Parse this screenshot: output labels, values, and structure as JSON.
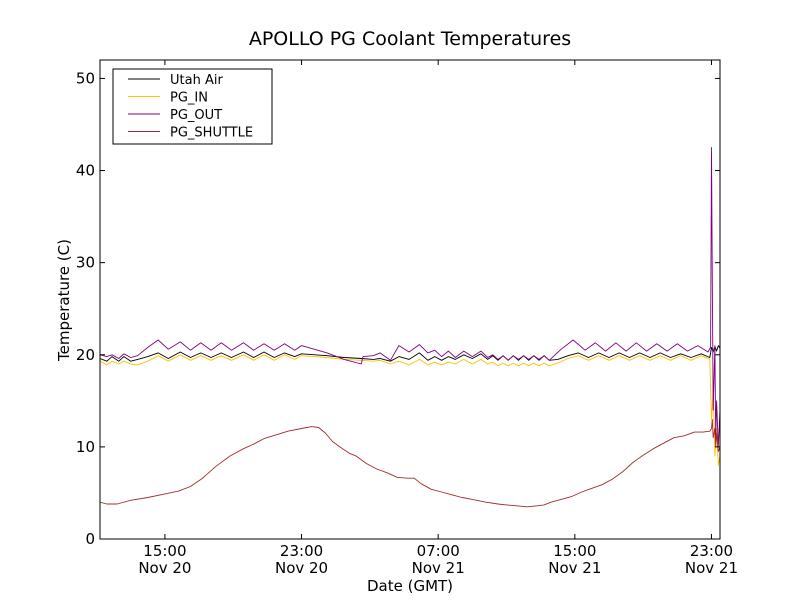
{
  "chart_data": {
    "type": "line",
    "title": "APOLLO PG Coolant Temperatures",
    "xlabel": "Date (GMT)",
    "ylabel": "Temperature (C)",
    "xlim": [
      11.2,
      47.5
    ],
    "ylim": [
      0,
      52
    ],
    "yticks": [
      0,
      10,
      20,
      30,
      40,
      50
    ],
    "xticks": [
      {
        "hour": 15,
        "time": "15:00",
        "date": "Nov 20"
      },
      {
        "hour": 23,
        "time": "23:00",
        "date": "Nov 20"
      },
      {
        "hour": 31,
        "time": "07:00",
        "date": "Nov 21"
      },
      {
        "hour": 39,
        "time": "15:00",
        "date": "Nov 21"
      },
      {
        "hour": 47,
        "time": "23:00",
        "date": "Nov 21"
      }
    ],
    "legend_position": "top-left",
    "series": [
      {
        "name": "Utah Air",
        "color": "#000000",
        "points": [
          [
            11.2,
            19.6
          ],
          [
            11.6,
            19.3
          ],
          [
            11.9,
            19.8
          ],
          [
            12.3,
            19.3
          ],
          [
            12.6,
            19.8
          ],
          [
            13,
            19.3
          ],
          [
            13.4,
            19.5
          ],
          [
            14,
            19.8
          ],
          [
            14.6,
            20.2
          ],
          [
            15.2,
            19.6
          ],
          [
            15.9,
            20.3
          ],
          [
            16.5,
            19.7
          ],
          [
            17.1,
            20.2
          ],
          [
            17.7,
            19.7
          ],
          [
            18.3,
            20.2
          ],
          [
            18.9,
            19.7
          ],
          [
            19.6,
            20.3
          ],
          [
            20.2,
            19.7
          ],
          [
            20.8,
            20.3
          ],
          [
            21.4,
            19.7
          ],
          [
            22,
            20.2
          ],
          [
            22.6,
            19.8
          ],
          [
            23,
            20.1
          ],
          [
            24.5,
            19.9
          ],
          [
            25.5,
            19.7
          ],
          [
            26.5,
            19.6
          ],
          [
            27.2,
            19.5
          ],
          [
            27.6,
            19.6
          ],
          [
            28.2,
            19.3
          ],
          [
            28.7,
            19.8
          ],
          [
            29.3,
            19.5
          ],
          [
            29.9,
            20.2
          ],
          [
            30.4,
            19.4
          ],
          [
            30.8,
            19.8
          ],
          [
            31.2,
            19.4
          ],
          [
            31.6,
            19.8
          ],
          [
            32,
            19.5
          ],
          [
            32.5,
            20
          ],
          [
            33,
            19.6
          ],
          [
            33.5,
            20.1
          ],
          [
            33.9,
            19.5
          ],
          [
            34.2,
            19.9
          ],
          [
            34.5,
            19.4
          ],
          [
            34.8,
            19.9
          ],
          [
            35.1,
            19.4
          ],
          [
            35.4,
            19.9
          ],
          [
            35.7,
            19.4
          ],
          [
            36,
            19.9
          ],
          [
            36.3,
            19.4
          ],
          [
            36.6,
            19.9
          ],
          [
            36.9,
            19.4
          ],
          [
            37.2,
            19.9
          ],
          [
            37.5,
            19.4
          ],
          [
            38,
            19.5
          ],
          [
            38.6,
            19.9
          ],
          [
            39.2,
            20.2
          ],
          [
            39.8,
            19.7
          ],
          [
            40.4,
            20.2
          ],
          [
            41,
            19.7
          ],
          [
            41.6,
            20.2
          ],
          [
            42.2,
            19.7
          ],
          [
            42.8,
            20.2
          ],
          [
            43.4,
            19.7
          ],
          [
            44,
            20.2
          ],
          [
            44.6,
            19.7
          ],
          [
            45.2,
            20.1
          ],
          [
            45.8,
            19.7
          ],
          [
            46.4,
            20.1
          ],
          [
            46.9,
            19.7
          ],
          [
            47,
            20.8
          ],
          [
            47.1,
            20.3
          ],
          [
            47.2,
            20.9
          ],
          [
            47.3,
            20.4
          ],
          [
            47.4,
            21
          ],
          [
            47.5,
            20.7
          ]
        ]
      },
      {
        "name": "PG_IN",
        "color": "#ffc000",
        "points": [
          [
            11.2,
            19.3
          ],
          [
            11.6,
            18.9
          ],
          [
            11.9,
            19.3
          ],
          [
            12.3,
            19
          ],
          [
            12.6,
            19.3
          ],
          [
            13,
            19
          ],
          [
            13.4,
            18.9
          ],
          [
            14,
            19.3
          ],
          [
            14.6,
            19.9
          ],
          [
            15.2,
            19.3
          ],
          [
            15.9,
            20
          ],
          [
            16.5,
            19.4
          ],
          [
            17.1,
            19.9
          ],
          [
            17.7,
            19.4
          ],
          [
            18.3,
            19.9
          ],
          [
            18.9,
            19.4
          ],
          [
            19.6,
            20
          ],
          [
            20.2,
            19.4
          ],
          [
            20.8,
            20
          ],
          [
            21.4,
            19.4
          ],
          [
            22,
            20
          ],
          [
            22.6,
            19.5
          ],
          [
            23,
            19.9
          ],
          [
            24.5,
            19.7
          ],
          [
            25.5,
            19.5
          ],
          [
            26.5,
            19.4
          ],
          [
            27.2,
            19.3
          ],
          [
            27.6,
            19.4
          ],
          [
            28.2,
            19
          ],
          [
            28.7,
            19.3
          ],
          [
            29.3,
            18.9
          ],
          [
            29.9,
            19.5
          ],
          [
            30.4,
            18.9
          ],
          [
            30.8,
            19.2
          ],
          [
            31.2,
            18.9
          ],
          [
            31.6,
            19.2
          ],
          [
            32,
            19
          ],
          [
            32.5,
            19.5
          ],
          [
            33,
            19
          ],
          [
            33.5,
            19.5
          ],
          [
            33.9,
            19
          ],
          [
            34.2,
            19.2
          ],
          [
            34.5,
            18.8
          ],
          [
            34.8,
            19.1
          ],
          [
            35.1,
            18.8
          ],
          [
            35.4,
            19.1
          ],
          [
            35.7,
            18.8
          ],
          [
            36,
            19.1
          ],
          [
            36.3,
            18.8
          ],
          [
            36.6,
            19.1
          ],
          [
            36.9,
            18.8
          ],
          [
            37.2,
            19.1
          ],
          [
            37.5,
            18.8
          ],
          [
            38,
            19.1
          ],
          [
            38.6,
            19.6
          ],
          [
            39.2,
            19.9
          ],
          [
            39.8,
            19.4
          ],
          [
            40.4,
            19.9
          ],
          [
            41,
            19.4
          ],
          [
            41.6,
            19.9
          ],
          [
            42.2,
            19.4
          ],
          [
            42.8,
            19.9
          ],
          [
            43.4,
            19.4
          ],
          [
            44,
            19.9
          ],
          [
            44.6,
            19.4
          ],
          [
            45.2,
            19.9
          ],
          [
            45.8,
            19.4
          ],
          [
            46.4,
            19.9
          ],
          [
            46.9,
            19.5
          ],
          [
            47,
            13
          ],
          [
            47.1,
            16
          ],
          [
            47.2,
            9
          ],
          [
            47.3,
            12
          ],
          [
            47.4,
            8
          ],
          [
            47.5,
            9
          ]
        ]
      },
      {
        "name": "PG_OUT",
        "color": "#800080",
        "points": [
          [
            11.2,
            20
          ],
          [
            11.6,
            19.8
          ],
          [
            11.9,
            20
          ],
          [
            12.3,
            19.6
          ],
          [
            12.6,
            20.1
          ],
          [
            13,
            19.7
          ],
          [
            13.4,
            19.9
          ],
          [
            14,
            20.8
          ],
          [
            14.6,
            21.6
          ],
          [
            15.2,
            20.6
          ],
          [
            15.9,
            21.4
          ],
          [
            16.5,
            20.5
          ],
          [
            17.1,
            21.3
          ],
          [
            17.7,
            20.5
          ],
          [
            18.3,
            21.3
          ],
          [
            18.9,
            20.5
          ],
          [
            19.6,
            21.3
          ],
          [
            20.2,
            20.5
          ],
          [
            20.8,
            21.2
          ],
          [
            21.4,
            20.5
          ],
          [
            22,
            21.2
          ],
          [
            22.6,
            20.5
          ],
          [
            23,
            21
          ],
          [
            24.5,
            20.2
          ],
          [
            25.5,
            19.5
          ],
          [
            26.5,
            19
          ],
          [
            26.6,
            19.8
          ],
          [
            27.2,
            19.9
          ],
          [
            27.6,
            20.2
          ],
          [
            28.2,
            19.4
          ],
          [
            28.7,
            21
          ],
          [
            29.3,
            20.3
          ],
          [
            29.9,
            21.1
          ],
          [
            30.4,
            20.2
          ],
          [
            30.8,
            20.5
          ],
          [
            31.2,
            19.8
          ],
          [
            31.6,
            20.4
          ],
          [
            32,
            19.7
          ],
          [
            32.5,
            20.4
          ],
          [
            33,
            19.8
          ],
          [
            33.5,
            20.4
          ],
          [
            33.9,
            19.7
          ],
          [
            34.2,
            20
          ],
          [
            34.5,
            19.5
          ],
          [
            34.8,
            19.9
          ],
          [
            35.1,
            19.4
          ],
          [
            35.4,
            19.9
          ],
          [
            35.7,
            19.5
          ],
          [
            36,
            19.9
          ],
          [
            36.3,
            19.5
          ],
          [
            36.6,
            19.9
          ],
          [
            36.9,
            19.5
          ],
          [
            37.2,
            19.9
          ],
          [
            37.5,
            19.4
          ],
          [
            38.2,
            20.6
          ],
          [
            38.9,
            21.6
          ],
          [
            39.6,
            20.5
          ],
          [
            40.2,
            21.3
          ],
          [
            40.8,
            20.4
          ],
          [
            41.4,
            21.3
          ],
          [
            42,
            20.4
          ],
          [
            42.6,
            21.3
          ],
          [
            43.2,
            20.4
          ],
          [
            43.8,
            21.2
          ],
          [
            44.4,
            20.4
          ],
          [
            45,
            21.2
          ],
          [
            45.6,
            20.4
          ],
          [
            46.2,
            21
          ],
          [
            46.8,
            20.3
          ],
          [
            46.95,
            20.8
          ],
          [
            47,
            42.5
          ],
          [
            47.05,
            28
          ],
          [
            47.1,
            14
          ],
          [
            47.2,
            21
          ],
          [
            47.25,
            11
          ],
          [
            47.3,
            15
          ],
          [
            47.4,
            10
          ],
          [
            47.5,
            14
          ]
        ]
      },
      {
        "name": "PG_SHUTTLE",
        "color": "#a52a2a",
        "points": [
          [
            11.2,
            4
          ],
          [
            11.6,
            3.8
          ],
          [
            12.2,
            3.8
          ],
          [
            13,
            4.2
          ],
          [
            14,
            4.5
          ],
          [
            15,
            4.9
          ],
          [
            15.8,
            5.2
          ],
          [
            16.5,
            5.7
          ],
          [
            17.2,
            6.6
          ],
          [
            18,
            7.9
          ],
          [
            18.8,
            9
          ],
          [
            19.6,
            9.8
          ],
          [
            20.2,
            10.3
          ],
          [
            20.8,
            10.9
          ],
          [
            21.5,
            11.3
          ],
          [
            22.2,
            11.7
          ],
          [
            23,
            12
          ],
          [
            23.6,
            12.2
          ],
          [
            24,
            12.1
          ],
          [
            24.4,
            11.5
          ],
          [
            24.8,
            10.6
          ],
          [
            25.4,
            9.8
          ],
          [
            25.8,
            9.3
          ],
          [
            26.2,
            9
          ],
          [
            26.8,
            8.2
          ],
          [
            27.4,
            7.6
          ],
          [
            28,
            7.2
          ],
          [
            28.6,
            6.7
          ],
          [
            29.2,
            6.6
          ],
          [
            29.6,
            6.6
          ],
          [
            30,
            6
          ],
          [
            30.6,
            5.4
          ],
          [
            31.2,
            5.1
          ],
          [
            31.8,
            4.8
          ],
          [
            32.4,
            4.5
          ],
          [
            33,
            4.3
          ],
          [
            33.8,
            4
          ],
          [
            34.5,
            3.8
          ],
          [
            35,
            3.7
          ],
          [
            35.6,
            3.6
          ],
          [
            36.2,
            3.5
          ],
          [
            36.8,
            3.6
          ],
          [
            37.2,
            3.7
          ],
          [
            37.6,
            4
          ],
          [
            38.2,
            4.3
          ],
          [
            38.8,
            4.6
          ],
          [
            39.4,
            5.1
          ],
          [
            40,
            5.5
          ],
          [
            40.6,
            5.9
          ],
          [
            41.2,
            6.5
          ],
          [
            41.8,
            7.3
          ],
          [
            42.4,
            8.3
          ],
          [
            43,
            9.1
          ],
          [
            43.6,
            9.8
          ],
          [
            44.2,
            10.4
          ],
          [
            44.8,
            11
          ],
          [
            45.4,
            11.2
          ],
          [
            46,
            11.6
          ],
          [
            46.5,
            11.6
          ],
          [
            46.9,
            11.7
          ],
          [
            47,
            12
          ],
          [
            47.05,
            13
          ],
          [
            47.1,
            11
          ],
          [
            47.2,
            12
          ],
          [
            47.25,
            10
          ],
          [
            47.3,
            11.5
          ],
          [
            47.4,
            9.5
          ],
          [
            47.5,
            10
          ]
        ]
      }
    ]
  }
}
